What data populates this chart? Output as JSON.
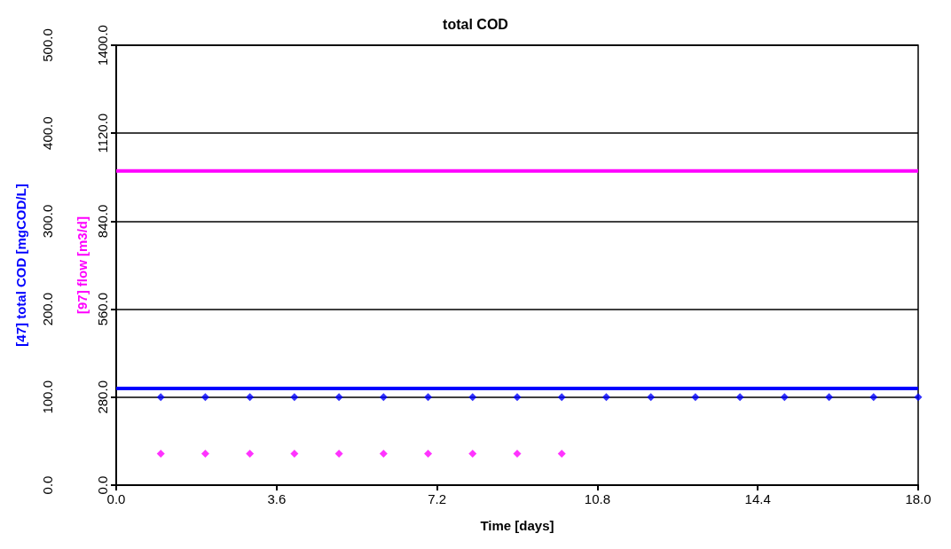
{
  "chart_data": {
    "type": "line",
    "title": "total COD",
    "xlabel": "Time [days]",
    "ylabel": "[47] total COD [mgCOD/L]",
    "y2label": "[97] flow [m3/d]",
    "xlim": [
      0,
      18
    ],
    "xticks": [
      {
        "value": 0,
        "label": "0.0"
      },
      {
        "value": 3.6,
        "label": "3.6"
      },
      {
        "value": 7.2,
        "label": "7.2"
      },
      {
        "value": 10.8,
        "label": "10.8"
      },
      {
        "value": 14.4,
        "label": "14.4"
      },
      {
        "value": 18,
        "label": "18.0"
      }
    ],
    "ylim": [
      0,
      500
    ],
    "yticks": [
      {
        "value": 0,
        "label": "0.0"
      },
      {
        "value": 100,
        "label": "100.0"
      },
      {
        "value": 200,
        "label": "200.0"
      },
      {
        "value": 300,
        "label": "300.0"
      },
      {
        "value": 400,
        "label": "400.0"
      },
      {
        "value": 500,
        "label": "500.0"
      }
    ],
    "y2lim": [
      0,
      1400
    ],
    "y2ticks": [
      {
        "value": 0,
        "label": "0.0"
      },
      {
        "value": 280,
        "label": "280.0"
      },
      {
        "value": 560,
        "label": "560.0"
      },
      {
        "value": 840,
        "label": "840.0"
      },
      {
        "value": 1120,
        "label": "1120.0"
      },
      {
        "value": 1400,
        "label": "1400.0"
      }
    ],
    "grid": "y",
    "series": [
      {
        "color": "#0000ff",
        "x": [
          0,
          18
        ],
        "values": [
          110,
          110
        ],
        "marker": "none"
      },
      {
        "type": "scatter",
        "color": "#0000ff",
        "x": [
          1,
          2,
          3,
          4,
          5,
          6,
          7,
          8,
          9,
          10,
          11,
          12,
          13,
          14,
          15,
          16,
          17,
          18
        ],
        "values": [
          100,
          100,
          100,
          100,
          100,
          100,
          100,
          100,
          100,
          100,
          100,
          100,
          100,
          100,
          100,
          100,
          100,
          100
        ],
        "marker": "diamond"
      },
      {
        "color": "#ff00ff",
        "axis": "y2",
        "x": [
          0,
          18
        ],
        "values": [
          1000,
          1000
        ],
        "marker": "none"
      },
      {
        "type": "scatter",
        "color": "#ff00ff",
        "axis": "y2",
        "x": [
          1,
          2,
          3,
          4,
          5,
          6,
          7,
          8,
          9,
          10
        ],
        "values": [
          100,
          100,
          100,
          100,
          100,
          100,
          100,
          100,
          100,
          100
        ],
        "marker": "diamond"
      }
    ]
  }
}
